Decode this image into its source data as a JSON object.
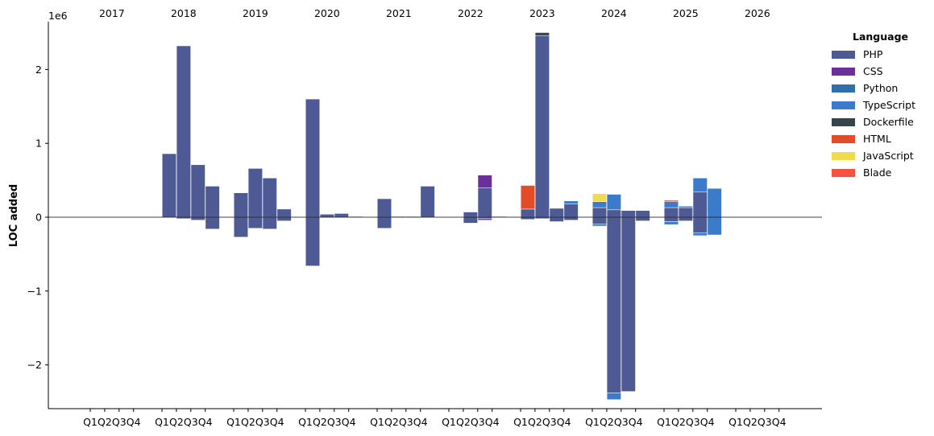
{
  "chart_data": {
    "type": "bar",
    "stacked": true,
    "ylabel": "LOC added",
    "y_exponent_label": "1e6",
    "ylim": [
      -2.6,
      2.65
    ],
    "yticks": [
      -2,
      -1,
      0,
      1,
      2
    ],
    "ytick_labels": [
      "−2",
      "−1",
      "0",
      "1",
      "2"
    ],
    "quarter_labels": [
      "Q1",
      "Q2",
      "Q3",
      "Q4"
    ],
    "years": [
      "2017",
      "2018",
      "2019",
      "2020",
      "2021",
      "2022",
      "2023",
      "2024",
      "2025",
      "2026"
    ],
    "legend": {
      "title": "Language",
      "position": "top-right-outside",
      "entries": [
        "PHP",
        "CSS",
        "Python",
        "TypeScript",
        "Dockerfile",
        "HTML",
        "JavaScript",
        "Blade"
      ]
    },
    "colors": {
      "PHP": "#4e5a93",
      "CSS": "#6b2f9a",
      "Python": "#2f6fad",
      "TypeScript": "#3a7bcc",
      "Dockerfile": "#34464b",
      "HTML": "#e34c26",
      "JavaScript": "#f0db4f",
      "Blade": "#f7523f"
    },
    "quarters": [
      {
        "year": "2018",
        "q": 1,
        "pos": [
          [
            "PHP",
            0.86
          ]
        ],
        "neg": []
      },
      {
        "year": "2018",
        "q": 2,
        "pos": [
          [
            "PHP",
            2.32
          ]
        ],
        "neg": [
          [
            "PHP",
            -0.02
          ]
        ]
      },
      {
        "year": "2018",
        "q": 3,
        "pos": [
          [
            "PHP",
            0.71
          ]
        ],
        "neg": [
          [
            "PHP",
            -0.04
          ]
        ]
      },
      {
        "year": "2018",
        "q": 4,
        "pos": [
          [
            "PHP",
            0.42
          ]
        ],
        "neg": [
          [
            "PHP",
            -0.16
          ]
        ]
      },
      {
        "year": "2019",
        "q": 1,
        "pos": [
          [
            "PHP",
            0.33
          ]
        ],
        "neg": [
          [
            "PHP",
            -0.27
          ]
        ]
      },
      {
        "year": "2019",
        "q": 2,
        "pos": [
          [
            "PHP",
            0.66
          ]
        ],
        "neg": [
          [
            "PHP",
            -0.15
          ]
        ]
      },
      {
        "year": "2019",
        "q": 3,
        "pos": [
          [
            "PHP",
            0.53
          ]
        ],
        "neg": [
          [
            "PHP",
            -0.16
          ]
        ]
      },
      {
        "year": "2019",
        "q": 4,
        "pos": [
          [
            "PHP",
            0.11
          ]
        ],
        "neg": [
          [
            "PHP",
            -0.05
          ]
        ]
      },
      {
        "year": "2020",
        "q": 1,
        "pos": [
          [
            "PHP",
            1.6
          ]
        ],
        "neg": [
          [
            "PHP",
            -0.66
          ]
        ]
      },
      {
        "year": "2020",
        "q": 2,
        "pos": [
          [
            "PHP",
            0.04
          ]
        ],
        "neg": []
      },
      {
        "year": "2020",
        "q": 3,
        "pos": [
          [
            "PHP",
            0.05
          ]
        ],
        "neg": []
      },
      {
        "year": "2020",
        "q": 4,
        "pos": [
          [
            "PHP",
            0.01
          ]
        ],
        "neg": []
      },
      {
        "year": "2021",
        "q": 1,
        "pos": [
          [
            "PHP",
            0.25
          ]
        ],
        "neg": [
          [
            "PHP",
            -0.15
          ]
        ]
      },
      {
        "year": "2021",
        "q": 2,
        "pos": [
          [
            "PHP",
            0.01
          ]
        ],
        "neg": []
      },
      {
        "year": "2021",
        "q": 3,
        "pos": [
          [
            "PHP",
            0.01
          ]
        ],
        "neg": []
      },
      {
        "year": "2021",
        "q": 4,
        "pos": [
          [
            "PHP",
            0.42
          ]
        ],
        "neg": []
      },
      {
        "year": "2022",
        "q": 2,
        "pos": [
          [
            "PHP",
            0.07
          ]
        ],
        "neg": [
          [
            "PHP",
            -0.08
          ]
        ]
      },
      {
        "year": "2022",
        "q": 3,
        "pos": [
          [
            "PHP",
            0.4
          ],
          [
            "CSS",
            0.17
          ]
        ],
        "neg": [
          [
            "PHP",
            -0.02
          ],
          [
            "CSS",
            -0.02
          ]
        ]
      },
      {
        "year": "2022",
        "q": 4,
        "pos": [
          [
            "PHP",
            0.01
          ]
        ],
        "neg": []
      },
      {
        "year": "2023",
        "q": 1,
        "pos": [
          [
            "PHP",
            0.11
          ],
          [
            "HTML",
            0.32
          ]
        ],
        "neg": [
          [
            "PHP",
            -0.03
          ]
        ]
      },
      {
        "year": "2023",
        "q": 2,
        "pos": [
          [
            "PHP",
            2.46
          ],
          [
            "Dockerfile",
            0.04
          ]
        ],
        "neg": [
          [
            "PHP",
            -0.02
          ]
        ]
      },
      {
        "year": "2023",
        "q": 3,
        "pos": [
          [
            "PHP",
            0.12
          ]
        ],
        "neg": [
          [
            "PHP",
            -0.06
          ]
        ]
      },
      {
        "year": "2023",
        "q": 4,
        "pos": [
          [
            "PHP",
            0.18
          ],
          [
            "TypeScript",
            0.04
          ]
        ],
        "neg": [
          [
            "PHP",
            -0.04
          ]
        ]
      },
      {
        "year": "2024",
        "q": 1,
        "pos": [
          [
            "PHP",
            0.13
          ],
          [
            "TypeScript",
            0.08
          ],
          [
            "JavaScript",
            0.11
          ]
        ],
        "neg": [
          [
            "PHP",
            -0.09
          ],
          [
            "TypeScript",
            -0.03
          ]
        ]
      },
      {
        "year": "2024",
        "q": 2,
        "pos": [
          [
            "PHP",
            0.1
          ],
          [
            "TypeScript",
            0.21
          ]
        ],
        "neg": [
          [
            "PHP",
            -2.38
          ],
          [
            "TypeScript",
            -0.09
          ]
        ]
      },
      {
        "year": "2024",
        "q": 3,
        "pos": [
          [
            "PHP",
            0.09
          ]
        ],
        "neg": [
          [
            "PHP",
            -2.36
          ]
        ]
      },
      {
        "year": "2024",
        "q": 4,
        "pos": [
          [
            "PHP",
            0.09
          ]
        ],
        "neg": [
          [
            "PHP",
            -0.05
          ]
        ]
      },
      {
        "year": "2025",
        "q": 1,
        "pos": [
          [
            "PHP",
            0.13
          ],
          [
            "TypeScript",
            0.08
          ],
          [
            "Blade",
            0.02
          ]
        ],
        "neg": [
          [
            "PHP",
            -0.06
          ],
          [
            "TypeScript",
            -0.04
          ]
        ]
      },
      {
        "year": "2025",
        "q": 2,
        "pos": [
          [
            "PHP",
            0.13
          ],
          [
            "TypeScript",
            0.02
          ]
        ],
        "neg": [
          [
            "PHP",
            -0.05
          ]
        ]
      },
      {
        "year": "2025",
        "q": 3,
        "pos": [
          [
            "PHP",
            0.34
          ],
          [
            "TypeScript",
            0.19
          ]
        ],
        "neg": [
          [
            "PHP",
            -0.21
          ],
          [
            "TypeScript",
            -0.04
          ]
        ]
      },
      {
        "year": "2025",
        "q": 4,
        "pos": [
          [
            "TypeScript",
            0.39
          ]
        ],
        "neg": [
          [
            "TypeScript",
            -0.24
          ]
        ]
      }
    ]
  }
}
